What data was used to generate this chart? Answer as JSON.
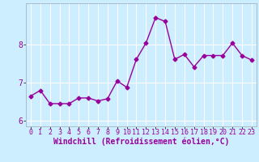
{
  "x": [
    0,
    1,
    2,
    3,
    4,
    5,
    6,
    7,
    8,
    9,
    10,
    11,
    12,
    13,
    14,
    15,
    16,
    17,
    18,
    19,
    20,
    21,
    22,
    23
  ],
  "y": [
    6.65,
    6.8,
    6.45,
    6.45,
    6.45,
    6.6,
    6.6,
    6.52,
    6.58,
    7.05,
    6.88,
    7.62,
    8.05,
    8.72,
    8.62,
    7.62,
    7.75,
    7.42,
    7.72,
    7.72,
    7.72,
    8.05,
    7.72,
    7.6
  ],
  "line_color": "#990099",
  "marker": "D",
  "marker_size": 2.5,
  "linewidth": 1.0,
  "xlabel": "Windchill (Refroidissement éolien,°C)",
  "xlabel_fontsize": 7,
  "background_color": "#cceeff",
  "grid_color": "#ffffff",
  "tick_label_color": "#990099",
  "tick_fontsize": 6,
  "ylim": [
    5.85,
    9.1
  ],
  "xlim": [
    -0.5,
    23.5
  ],
  "yticks": [
    6,
    7,
    8
  ],
  "xticks": [
    0,
    1,
    2,
    3,
    4,
    5,
    6,
    7,
    8,
    9,
    10,
    11,
    12,
    13,
    14,
    15,
    16,
    17,
    18,
    19,
    20,
    21,
    22,
    23
  ]
}
